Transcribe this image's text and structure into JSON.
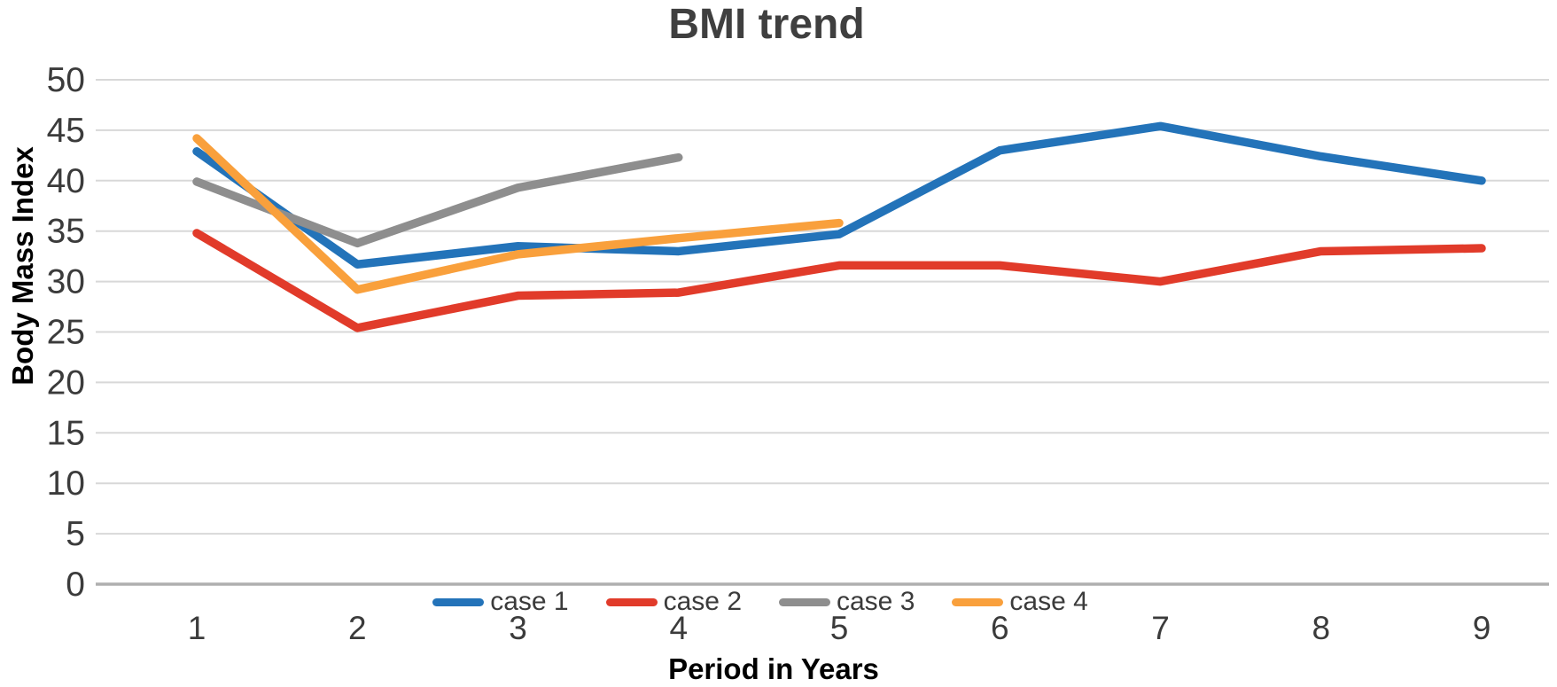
{
  "chart_data": {
    "type": "line",
    "title": "BMI trend",
    "xlabel": "Period in Years",
    "ylabel": "Body Mass Index",
    "x": [
      1,
      2,
      3,
      4,
      5,
      6,
      7,
      8,
      9
    ],
    "xticks": [
      "1",
      "2",
      "3",
      "4",
      "5",
      "6",
      "7",
      "8",
      "9"
    ],
    "yticks": [
      0,
      5,
      10,
      15,
      20,
      25,
      30,
      35,
      40,
      45,
      50
    ],
    "ylim": [
      0,
      50
    ],
    "grid": "horizontal-only",
    "legend_position": "bottom-center",
    "series": [
      {
        "name": "case 1",
        "color": "#2373b9",
        "values": [
          42.9,
          31.7,
          33.5,
          33.0,
          34.7,
          43.0,
          45.4,
          42.4,
          40.0
        ]
      },
      {
        "name": "case 2",
        "color": "#e13b2a",
        "values": [
          34.8,
          25.4,
          28.6,
          28.9,
          31.6,
          31.6,
          30.0,
          33.0,
          33.3
        ]
      },
      {
        "name": "case 3",
        "color": "#8e8e8e",
        "values": [
          39.9,
          33.8,
          39.3,
          42.3
        ]
      },
      {
        "name": "case 4",
        "color": "#f9a03c",
        "values": [
          44.2,
          29.2,
          32.7,
          34.3,
          35.8
        ]
      }
    ],
    "colors": {
      "gridline": "#d8d8d8",
      "axis_line": "#afafaf",
      "tick_label": "#3b3b3b",
      "title": "#3f3f3f",
      "axis_title": "#000000",
      "background": "#ffffff"
    }
  }
}
